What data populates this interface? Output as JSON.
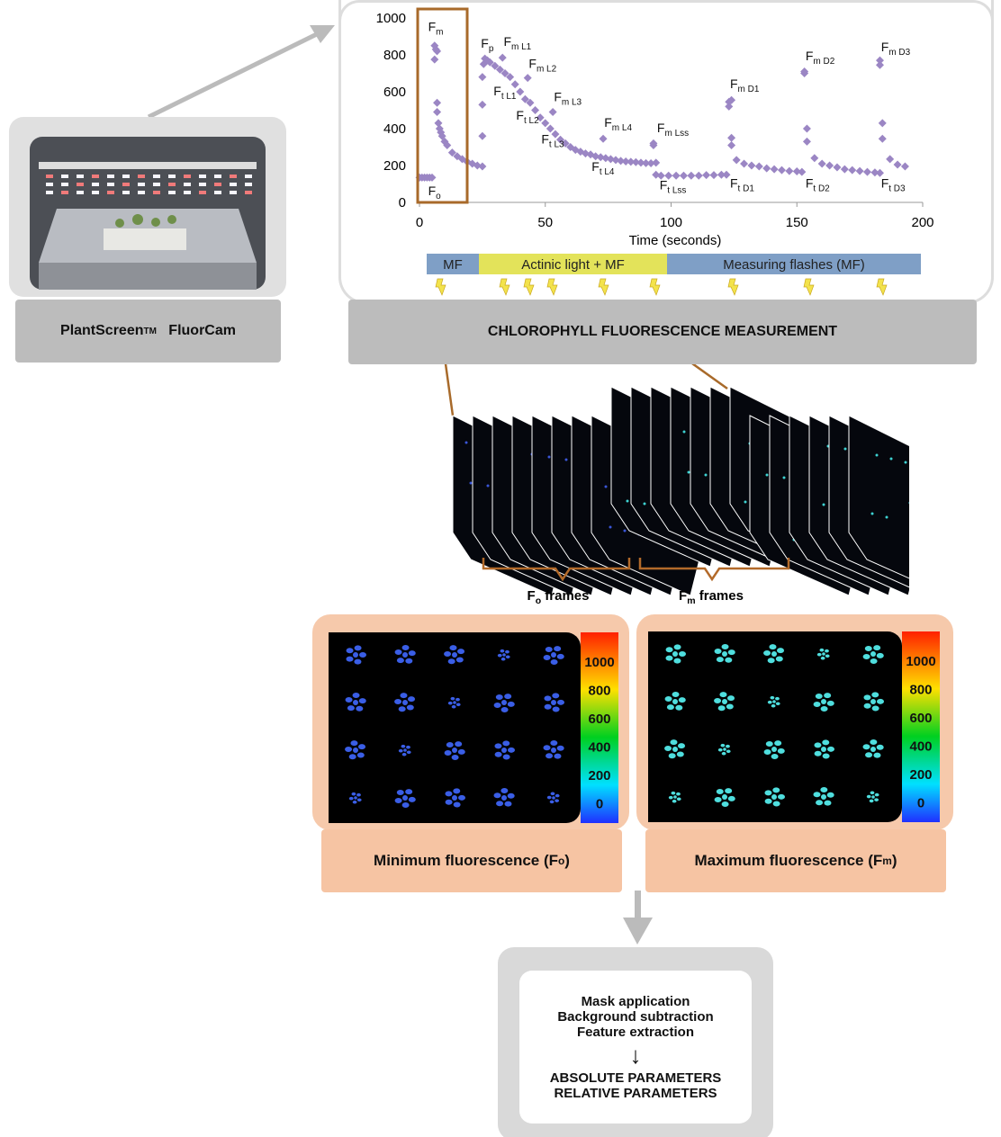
{
  "instrument": {
    "title": "PlantScreen",
    "trademark": "TM",
    "title_suffix": "FluorCam"
  },
  "measurement": {
    "title": "CHLOROPHYLL FLUORESCENCE MEASUREMENT"
  },
  "chart_data": {
    "type": "scatter",
    "xlabel": "Time (seconds)",
    "ylabel": "",
    "xlim": [
      0,
      200
    ],
    "ylim": [
      0,
      1000
    ],
    "xticks": [
      0,
      50,
      100,
      150,
      200
    ],
    "yticks": [
      0,
      200,
      400,
      600,
      800,
      1000
    ],
    "grid": false,
    "marker_color": "#9b86c4",
    "points": [
      [
        0,
        135
      ],
      [
        1,
        135
      ],
      [
        2,
        135
      ],
      [
        3,
        135
      ],
      [
        4,
        135
      ],
      [
        5,
        135
      ],
      [
        6,
        850
      ],
      [
        6.5,
        830
      ],
      [
        7,
        820
      ],
      [
        6,
        775
      ],
      [
        7,
        540
      ],
      [
        7,
        490
      ],
      [
        7.5,
        430
      ],
      [
        8,
        400
      ],
      [
        8.5,
        380
      ],
      [
        9,
        360
      ],
      [
        10,
        330
      ],
      [
        11,
        310
      ],
      [
        13,
        270
      ],
      [
        15,
        250
      ],
      [
        17,
        235
      ],
      [
        19,
        220
      ],
      [
        21,
        210
      ],
      [
        23,
        200
      ],
      [
        25,
        195
      ],
      [
        25,
        360
      ],
      [
        25,
        530
      ],
      [
        25,
        680
      ],
      [
        25.5,
        750
      ],
      [
        26,
        780
      ],
      [
        27,
        770
      ],
      [
        28,
        760
      ],
      [
        30,
        740
      ],
      [
        32,
        720
      ],
      [
        34,
        700
      ],
      [
        36,
        680
      ],
      [
        38,
        640
      ],
      [
        40,
        600
      ],
      [
        42,
        560
      ],
      [
        44,
        540
      ],
      [
        46,
        500
      ],
      [
        48,
        460
      ],
      [
        50,
        430
      ],
      [
        52,
        400
      ],
      [
        54,
        370
      ],
      [
        56,
        340
      ],
      [
        58,
        320
      ],
      [
        60,
        300
      ],
      [
        62,
        285
      ],
      [
        64,
        275
      ],
      [
        66,
        265
      ],
      [
        68,
        260
      ],
      [
        70,
        250
      ],
      [
        72,
        245
      ],
      [
        74,
        240
      ],
      [
        76,
        235
      ],
      [
        78,
        230
      ],
      [
        80,
        225
      ],
      [
        82,
        222
      ],
      [
        84,
        220
      ],
      [
        86,
        218
      ],
      [
        88,
        215
      ],
      [
        90,
        213
      ],
      [
        92,
        212
      ],
      [
        94,
        215
      ],
      [
        33,
        785
      ],
      [
        43,
        675
      ],
      [
        53,
        490
      ],
      [
        73,
        345
      ],
      [
        93,
        310
      ],
      [
        93,
        320
      ],
      [
        94,
        150
      ],
      [
        96,
        145
      ],
      [
        99,
        145
      ],
      [
        102,
        145
      ],
      [
        105,
        145
      ],
      [
        108,
        145
      ],
      [
        111,
        145
      ],
      [
        114,
        148
      ],
      [
        117,
        148
      ],
      [
        120,
        150
      ],
      [
        122,
        150
      ],
      [
        123,
        520
      ],
      [
        123,
        545
      ],
      [
        124,
        555
      ],
      [
        124,
        350
      ],
      [
        124,
        310
      ],
      [
        126,
        230
      ],
      [
        129,
        210
      ],
      [
        132,
        200
      ],
      [
        135,
        195
      ],
      [
        138,
        185
      ],
      [
        141,
        180
      ],
      [
        144,
        175
      ],
      [
        147,
        170
      ],
      [
        150,
        168
      ],
      [
        152,
        165
      ],
      [
        153,
        700
      ],
      [
        153,
        710
      ],
      [
        154,
        400
      ],
      [
        154,
        330
      ],
      [
        157,
        240
      ],
      [
        160,
        210
      ],
      [
        163,
        200
      ],
      [
        166,
        190
      ],
      [
        169,
        180
      ],
      [
        172,
        175
      ],
      [
        175,
        170
      ],
      [
        178,
        165
      ],
      [
        181,
        162
      ],
      [
        183,
        160
      ],
      [
        183,
        770
      ],
      [
        183,
        745
      ],
      [
        184,
        430
      ],
      [
        184,
        345
      ],
      [
        187,
        235
      ],
      [
        190,
        205
      ],
      [
        193,
        195
      ]
    ],
    "annotations": [
      {
        "main": "F",
        "sub": "m",
        "x": 2,
        "y": 930
      },
      {
        "main": "F",
        "sub": "o",
        "x": 2,
        "y": 40
      },
      {
        "main": "F",
        "sub": "p",
        "x": 23,
        "y": 840
      },
      {
        "main": "F",
        "sub": "m L1",
        "x": 32,
        "y": 850
      },
      {
        "main": "F",
        "sub": "m L2",
        "x": 42,
        "y": 730
      },
      {
        "main": "F",
        "sub": "t L1",
        "x": 28,
        "y": 580
      },
      {
        "main": "F",
        "sub": "m L3",
        "x": 52,
        "y": 550
      },
      {
        "main": "F",
        "sub": "t L2",
        "x": 37,
        "y": 450
      },
      {
        "main": "F",
        "sub": "t L3",
        "x": 47,
        "y": 320
      },
      {
        "main": "F",
        "sub": "m L4",
        "x": 72,
        "y": 410
      },
      {
        "main": "F",
        "sub": "m Lss",
        "x": 93,
        "y": 380
      },
      {
        "main": "F",
        "sub": "t L4",
        "x": 67,
        "y": 170
      },
      {
        "main": "F",
        "sub": "t Lss",
        "x": 94,
        "y": 70
      },
      {
        "main": "F",
        "sub": "m D1",
        "x": 122,
        "y": 620
      },
      {
        "main": "F",
        "sub": "t D1",
        "x": 122,
        "y": 80
      },
      {
        "main": "F",
        "sub": "m D2",
        "x": 152,
        "y": 770
      },
      {
        "main": "F",
        "sub": "t D2",
        "x": 152,
        "y": 80
      },
      {
        "main": "F",
        "sub": "m D3",
        "x": 182,
        "y": 820
      },
      {
        "main": "F",
        "sub": "t D3",
        "x": 182,
        "y": 80
      }
    ],
    "phases": [
      {
        "label": "MF",
        "color": "#7f9fc6"
      },
      {
        "label": "Actinic light + MF",
        "color": "#e3e35a"
      },
      {
        "label": "Measuring flashes (MF)",
        "color": "#7f9fc6"
      }
    ]
  },
  "frames": {
    "fo_label_main": "F",
    "fo_label_sub": "o",
    "fm_label_main": "F",
    "fm_label_sub": "m",
    "suffix": " frames"
  },
  "images": {
    "colorbar_ticks": [
      "1000",
      "800",
      "600",
      "400",
      "200",
      "0"
    ],
    "min": {
      "title": "Minimum fluorescence (F",
      "sub": "o",
      "close": ")",
      "plant_color": "#3a5ee6"
    },
    "max": {
      "title": "Maximum fluorescence (F",
      "sub": "m",
      "close": ")",
      "plant_color": "#4fdede"
    }
  },
  "processing": {
    "steps": [
      "Mask application",
      "Background subtraction",
      "Feature extraction"
    ],
    "outputs": [
      "ABSOLUTE PARAMETERS",
      "RELATIVE PARAMETERS"
    ]
  }
}
